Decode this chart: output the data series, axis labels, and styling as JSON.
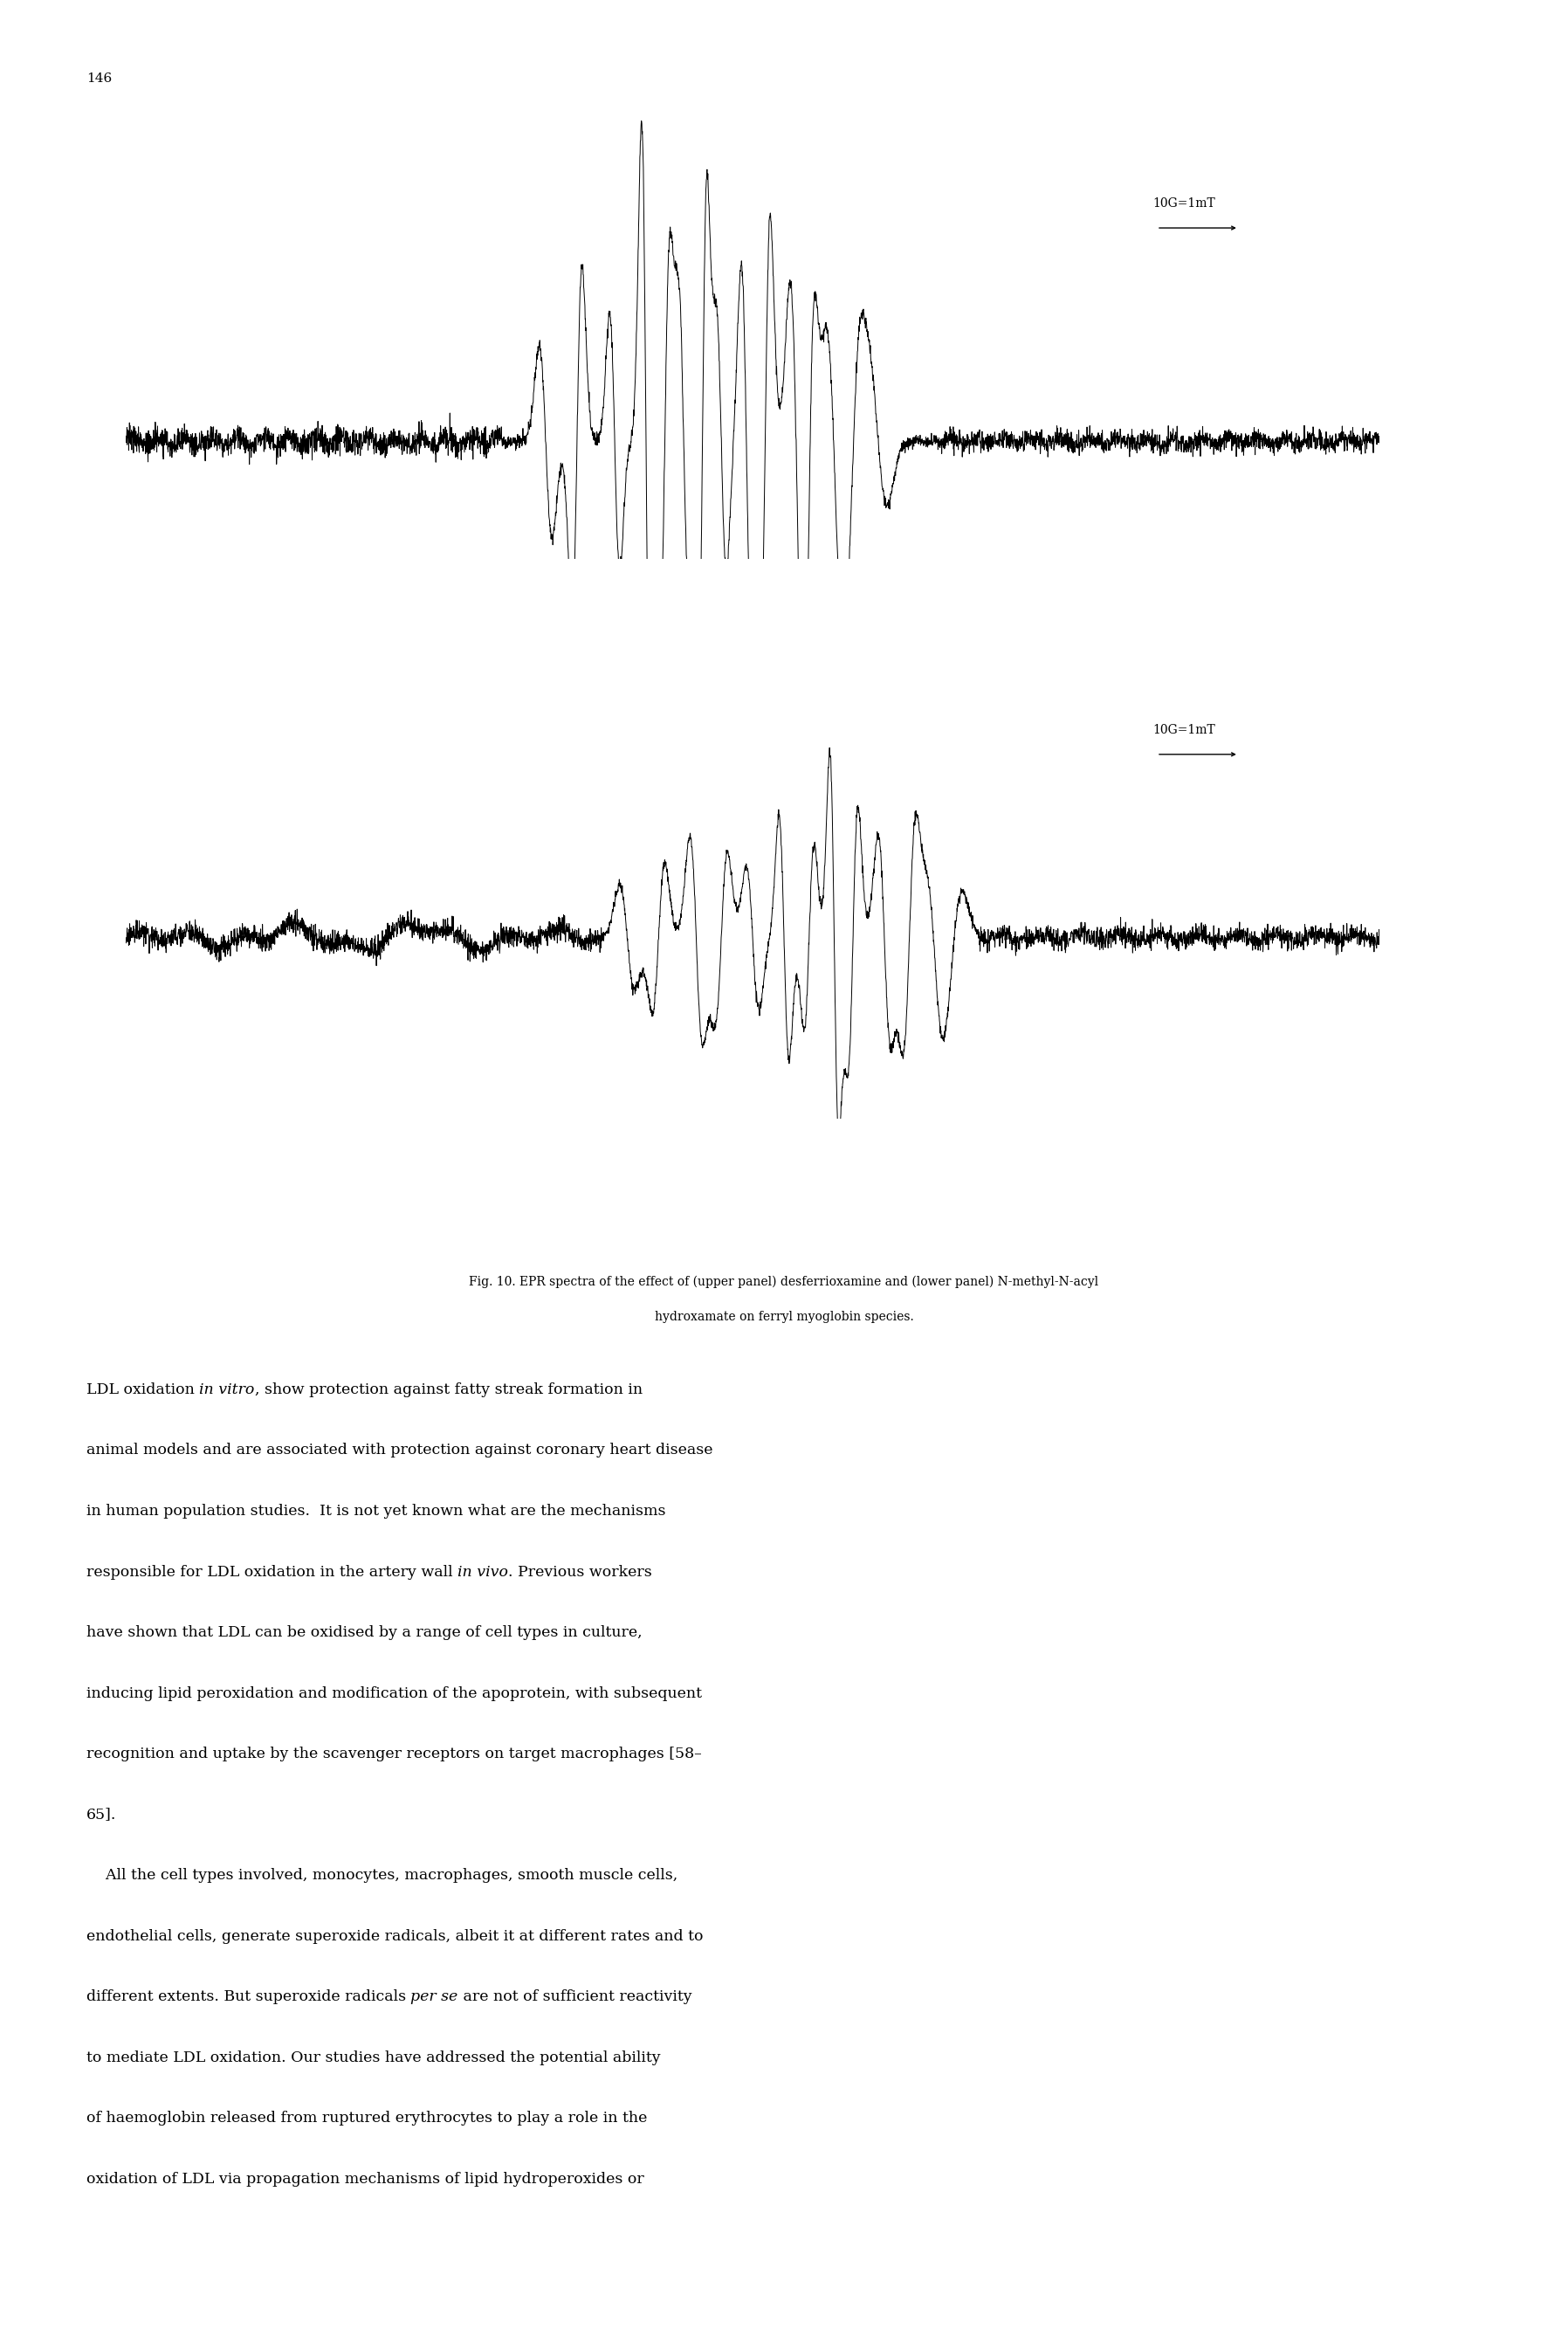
{
  "page_number": "146",
  "scale_label": "10G=1mT",
  "caption_line1": "Fig. 10. EPR spectra of the effect of (upper panel) desferrioxamine and (lower panel) N-methyl-N-acyl",
  "caption_line2": "hydroxamate on ferryl myoglobin species.",
  "bg": "#ffffff",
  "lc": "#000000",
  "body_lines": [
    [
      [
        "LDL oxidation ",
        false
      ],
      [
        "in vitro",
        true
      ],
      [
        ", show protection against fatty streak formation in",
        false
      ]
    ],
    [
      [
        "animal models and are associated with protection against coronary heart disease",
        false
      ]
    ],
    [
      [
        "in human population studies.  It is not yet known what are the mechanisms",
        false
      ]
    ],
    [
      [
        "responsible for LDL oxidation in the artery wall ",
        false
      ],
      [
        "in vivo",
        true
      ],
      [
        ". Previous workers",
        false
      ]
    ],
    [
      [
        "have shown that LDL can be oxidised by a range of cell types in culture,",
        false
      ]
    ],
    [
      [
        "inducing lipid peroxidation and modification of the apoprotein, with subsequent",
        false
      ]
    ],
    [
      [
        "recognition and uptake by the scavenger receptors on target macrophages [58–",
        false
      ]
    ],
    [
      [
        "65].",
        false
      ]
    ],
    [
      [
        "    All the cell types involved, monocytes, macrophages, smooth muscle cells,",
        false
      ]
    ],
    [
      [
        "endothelial cells, generate superoxide radicals, albeit it at different rates and to",
        false
      ]
    ],
    [
      [
        "different extents. But superoxide radicals ",
        false
      ],
      [
        "per se",
        true
      ],
      [
        " are not of sufficient reactivity",
        false
      ]
    ],
    [
      [
        "to mediate LDL oxidation. Our studies have addressed the potential ability",
        false
      ]
    ],
    [
      [
        "of haemoglobin released from ruptured erythrocytes to play a role in the",
        false
      ]
    ],
    [
      [
        "oxidation of LDL via propagation mechanisms of lipid hydroperoxides or",
        false
      ]
    ]
  ]
}
